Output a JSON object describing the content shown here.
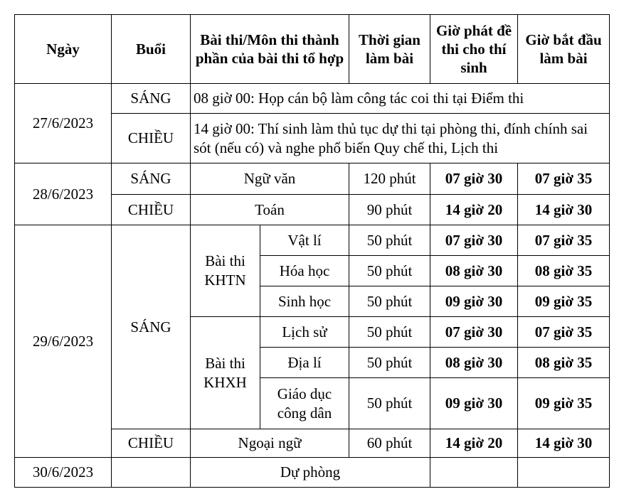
{
  "headers": {
    "date": "Ngày",
    "session": "Buổi",
    "subject": "Bài thi/Môn thi thành phần của bài thi tổ hợp",
    "duration": "Thời gian làm bài",
    "distribute": "Giờ phát đề thi cho thí sinh",
    "start": "Giờ bắt đầu làm bài"
  },
  "d1": {
    "date": "27/6/2023",
    "morning": {
      "session": "SÁNG",
      "note": "08 giờ 00: Họp cán bộ làm công tác coi thi tại Điểm thi"
    },
    "afternoon": {
      "session": "CHIỀU",
      "note": "14 giờ 00: Thí sinh làm thủ tục dự thi tại phòng thi, đính chính sai sót (nếu có) và nghe phổ biến Quy chế thi, Lịch thi"
    }
  },
  "d2": {
    "date": "28/6/2023",
    "morning": {
      "session": "SÁNG",
      "subject": "Ngữ văn",
      "duration": "120 phút",
      "distribute": "07 giờ 30",
      "start": "07 giờ 35"
    },
    "afternoon": {
      "session": "CHIỀU",
      "subject": "Toán",
      "duration": "90 phút",
      "distribute": "14 giờ 20",
      "start": "14 giờ 30"
    }
  },
  "d3": {
    "date": "29/6/2023",
    "morning_session": "SÁNG",
    "khtn": {
      "group": "Bài thi KHTN",
      "rows": [
        {
          "subject": "Vật lí",
          "duration": "50 phút",
          "distribute": "07 giờ 30",
          "start": "07 giờ 35"
        },
        {
          "subject": "Hóa học",
          "duration": "50 phút",
          "distribute": "08 giờ 30",
          "start": "08 giờ 35"
        },
        {
          "subject": "Sinh học",
          "duration": "50 phút",
          "distribute": "09 giờ 30",
          "start": "09 giờ 35"
        }
      ]
    },
    "khxh": {
      "group": "Bài thi KHXH",
      "rows": [
        {
          "subject": "Lịch sử",
          "duration": "50 phút",
          "distribute": "07 giờ 30",
          "start": "07 giờ 35"
        },
        {
          "subject": "Địa lí",
          "duration": "50 phút",
          "distribute": "08 giờ 30",
          "start": "08 giờ 35"
        },
        {
          "subject": "Giáo dục công dân",
          "duration": "50 phút",
          "distribute": "09 giờ 30",
          "start": "09 giờ 35"
        }
      ]
    },
    "afternoon": {
      "session": "CHIỀU",
      "subject": "Ngoại ngữ",
      "duration": "60 phút",
      "distribute": "14 giờ 20",
      "start": "14 giờ 30"
    }
  },
  "d4": {
    "date": "30/6/2023",
    "subject": "Dự phòng"
  }
}
